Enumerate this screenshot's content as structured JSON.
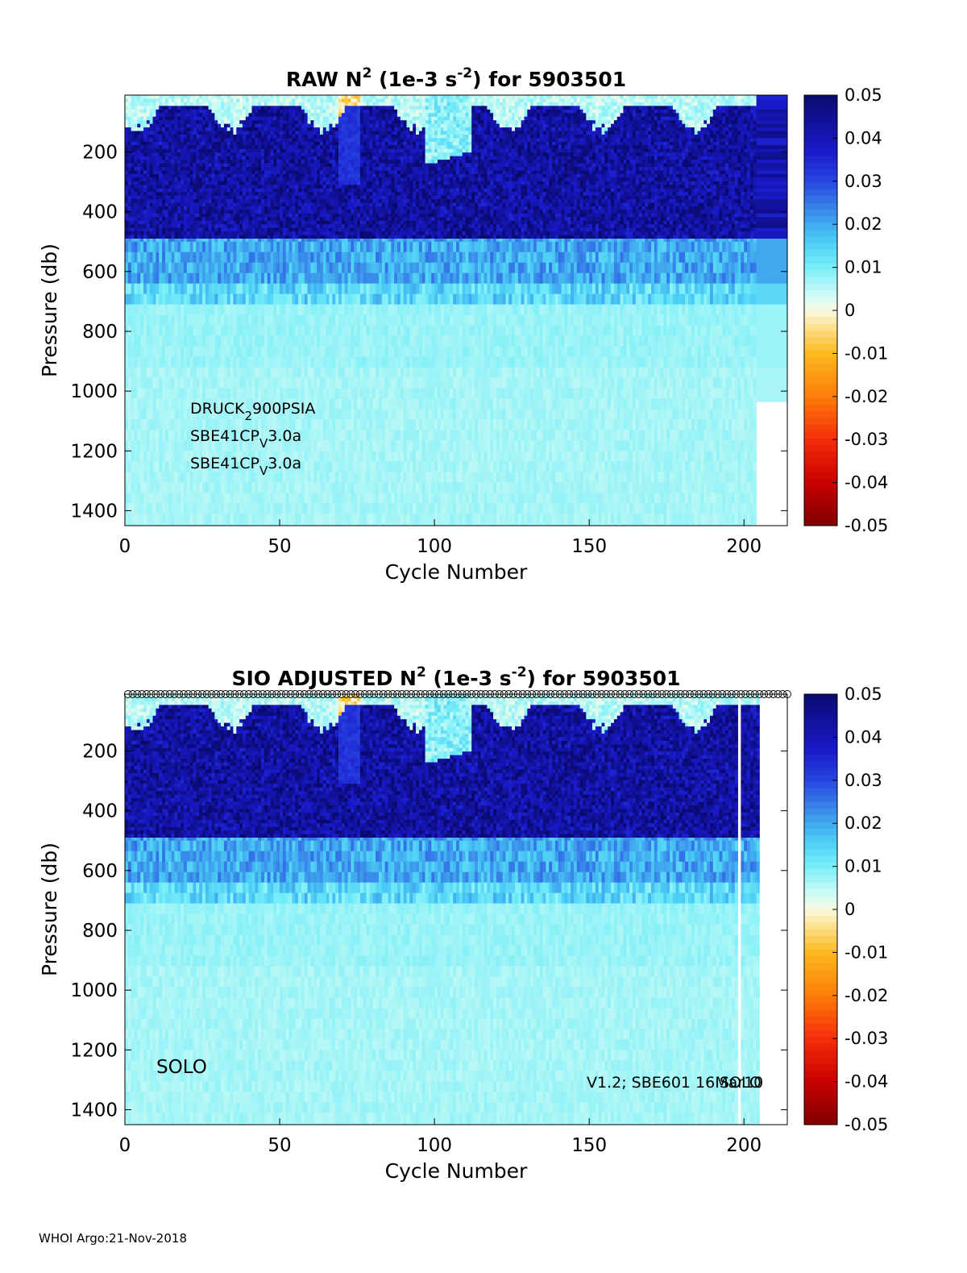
{
  "chart_data": [
    {
      "type": "heatmap",
      "title": {
        "prefix": "RAW N",
        "sup": "2",
        "mid": " (1e-3 s",
        "sup2": "-2",
        "suffix": ") for 5903501"
      },
      "xlabel": "Cycle Number",
      "ylabel": "Pressure (db)",
      "xlim": [
        0,
        214
      ],
      "ylim": [
        10,
        1450
      ],
      "xticks": [
        0,
        50,
        100,
        150,
        200
      ],
      "yticks": [
        200,
        400,
        600,
        800,
        1000,
        1200,
        1400
      ],
      "num_cycles": 204,
      "extra_column": {
        "x0": 204,
        "x1": 214,
        "max_pressure": 1035
      },
      "annotations": [
        {
          "base": "DRUCK",
          "sub": "2",
          "tail": "900PSIA"
        },
        {
          "base": "SBE41CP",
          "sub": "V",
          "tail": "3.0a"
        },
        {
          "base": "SBE41CP",
          "sub": "V",
          "tail": "3.0a"
        }
      ],
      "colorbar": {
        "range": [
          -0.05,
          0.05
        ],
        "ticks": [
          "0.05",
          "0.04",
          "0.03",
          "0.02",
          "0.01",
          "0",
          "-0.01",
          "-0.02",
          "-0.03",
          "-0.04",
          "-0.05"
        ]
      }
    },
    {
      "type": "heatmap",
      "title": {
        "prefix": "SIO  ADJUSTED N",
        "sup": "2",
        "mid": " (1e-3 s",
        "sup2": "-2",
        "suffix": ") for 5903501"
      },
      "xlabel": "Cycle Number",
      "ylabel": "Pressure (db)",
      "xlim": [
        0,
        214
      ],
      "ylim": [
        10,
        1450
      ],
      "xticks": [
        0,
        50,
        100,
        150,
        200
      ],
      "yticks": [
        200,
        400,
        600,
        800,
        1000,
        1200,
        1400
      ],
      "num_cycles": 205,
      "gap_cycle": 198,
      "qc_markers": true,
      "annotations": [
        {
          "text": "SOLO"
        },
        {
          "text": "V1.2; SBE601 16Mar10"
        },
        {
          "text": "SOLO"
        }
      ],
      "colorbar": {
        "range": [
          -0.05,
          0.05
        ],
        "ticks": [
          "0.05",
          "0.04",
          "0.03",
          "0.02",
          "0.01",
          "0",
          "-0.01",
          "-0.02",
          "-0.03",
          "-0.04",
          "-0.05"
        ]
      }
    }
  ],
  "footer": "WHOI Argo:21-Nov-2018"
}
